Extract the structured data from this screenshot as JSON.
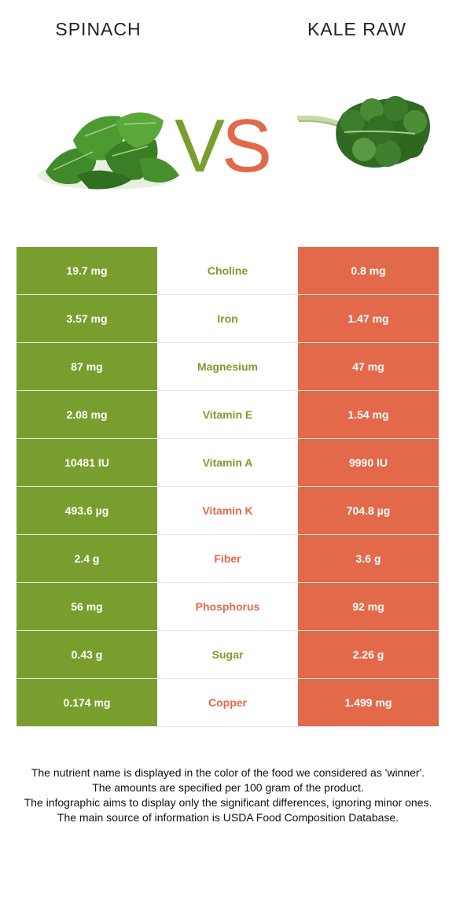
{
  "header": {
    "left_title": "SPINACH",
    "right_title": "KALE RAW",
    "vs_v": "V",
    "vs_s": "S"
  },
  "images": {
    "left": "spinach-leaves-illustration",
    "right": "kale-leaf-illustration"
  },
  "colors": {
    "left_food": "#7a9e2e",
    "right_food": "#e2694a"
  },
  "rows": [
    {
      "left": "19.7 mg",
      "nutrient": "Choline",
      "right": "0.8 mg",
      "winner": "left"
    },
    {
      "left": "3.57 mg",
      "nutrient": "Iron",
      "right": "1.47 mg",
      "winner": "left"
    },
    {
      "left": "87 mg",
      "nutrient": "Magnesium",
      "right": "47 mg",
      "winner": "left"
    },
    {
      "left": "2.08 mg",
      "nutrient": "Vitamin E",
      "right": "1.54 mg",
      "winner": "left"
    },
    {
      "left": "10481 IU",
      "nutrient": "Vitamin A",
      "right": "9990 IU",
      "winner": "left"
    },
    {
      "left": "493.6 µg",
      "nutrient": "Vitamin K",
      "right": "704.8 µg",
      "winner": "right"
    },
    {
      "left": "2.4 g",
      "nutrient": "Fiber",
      "right": "3.6 g",
      "winner": "right"
    },
    {
      "left": "56 mg",
      "nutrient": "Phosphorus",
      "right": "92 mg",
      "winner": "right"
    },
    {
      "left": "0.43 g",
      "nutrient": "Sugar",
      "right": "2.26 g",
      "winner": "left"
    },
    {
      "left": "0.174 mg",
      "nutrient": "Copper",
      "right": "1.499 mg",
      "winner": "right"
    }
  ],
  "notes": [
    "The nutrient name is displayed in the color of the food we considered as 'winner'.",
    "The amounts are specified per 100 gram of the product.",
    "The infographic aims to display only the significant differences, ignoring minor ones.",
    "The main source of information is USDA Food Composition Database."
  ]
}
